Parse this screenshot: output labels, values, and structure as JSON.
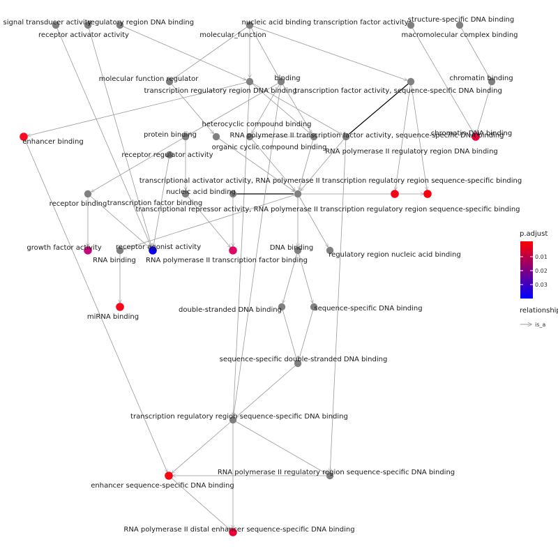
{
  "legend": {
    "color_title": "p.adjust",
    "color_ticks": [
      "0.01",
      "0.02",
      "0.03"
    ],
    "gradient_colors": [
      "#ff0000",
      "#0000ff"
    ],
    "edge_title": "relationship",
    "edge_type": "is_a"
  },
  "colors": {
    "gray_node": "#808080",
    "edge": "#999999",
    "emph_edge": "#000000"
  },
  "nodes": [
    {
      "id": "signal_transducer",
      "label": "signal transducer activity",
      "color": "gray"
    },
    {
      "id": "regulatory_region_dna",
      "label": "regulatory region DNA binding",
      "color": "gray"
    },
    {
      "id": "receptor_activator",
      "label": "receptor activator activity",
      "color": "gray"
    },
    {
      "id": "nucleic_acid_tf",
      "label": "nucleic acid binding transcription factor activity",
      "color": "gray"
    },
    {
      "id": "molecular_function",
      "label": "molecular_function",
      "color": "gray"
    },
    {
      "id": "structure_specific",
      "label": "structure-specific DNA binding",
      "color": "gray"
    },
    {
      "id": "macromolecular_complex",
      "label": "macromolecular complex binding",
      "color": "gray"
    },
    {
      "id": "molecular_function_regulator",
      "label": "molecular function regulator",
      "color": "gray"
    },
    {
      "id": "binding",
      "label": "binding",
      "color": "gray"
    },
    {
      "id": "chromatin",
      "label": "chromatin binding",
      "color": "gray"
    },
    {
      "id": "transcription_regulatory_region",
      "label": "transcription regulatory region DNA binding",
      "color": "gray"
    },
    {
      "id": "tf_activity_seq",
      "label": "transcription factor activity, sequence-specific DNA binding",
      "color": "gray"
    },
    {
      "id": "heterocyclic",
      "label": "heterocyclic compound binding",
      "color": "gray"
    },
    {
      "id": "enhancer",
      "label": "enhancer binding",
      "color": "#fb0a22"
    },
    {
      "id": "protein",
      "label": "protein binding",
      "color": "gray"
    },
    {
      "id": "rna_pol2_tf_seq",
      "label": "RNA polymerase II transcription factor activity, sequence-specific DNA binding",
      "color": "gray"
    },
    {
      "id": "chromatin_dna",
      "label": "chromatin DNA binding",
      "color": "#ea0438"
    },
    {
      "id": "organic_cyclic",
      "label": "organic cyclic compound binding",
      "color": "gray"
    },
    {
      "id": "rna_pol2_regulatory",
      "label": "RNA polymerase II regulatory region DNA binding",
      "color": "gray"
    },
    {
      "id": "receptor_regulator",
      "label": "receptor regulator activity",
      "color": "gray"
    },
    {
      "id": "transcriptional_activator",
      "label": "transcriptional activator activity, RNA polymerase II transcription regulatory region sequence-specific binding",
      "color": "#f3021c"
    },
    {
      "id": "transcriptional_repressor",
      "label": "transcriptional repressor activity, RNA polymerase II transcription regulatory region sequence-specific binding",
      "color": "#fb0010"
    },
    {
      "id": "nucleic_acid",
      "label": "nucleic acid binding",
      "color": "gray"
    },
    {
      "id": "receptor",
      "label": "receptor binding",
      "color": "gray"
    },
    {
      "id": "transcription_factor",
      "label": "transcription factor binding",
      "color": "gray"
    },
    {
      "id": "tf_hub",
      "label": "",
      "color": "gray"
    },
    {
      "id": "growth_factor",
      "label": "growth factor activity",
      "color": "#c8087a"
    },
    {
      "id": "receptor_agonist",
      "label": "receptor agonist activity",
      "color": "#0a00f4"
    },
    {
      "id": "rna",
      "label": "RNA binding",
      "color": "gray"
    },
    {
      "id": "rna_pol2_tf_binding",
      "label": "RNA polymerase II transcription factor binding",
      "color": "#dc0866"
    },
    {
      "id": "dna",
      "label": "DNA binding",
      "color": "gray"
    },
    {
      "id": "regulatory_region_nucleic",
      "label": "regulatory region nucleic acid binding",
      "color": "gray"
    },
    {
      "id": "mirna",
      "label": "miRNA binding",
      "color": "#f8061c"
    },
    {
      "id": "double_stranded",
      "label": "double-stranded DNA binding",
      "color": "gray"
    },
    {
      "id": "sequence_specific",
      "label": "sequence-specific DNA binding",
      "color": "gray"
    },
    {
      "id": "seq_ds",
      "label": "sequence-specific double-stranded DNA binding",
      "color": "gray"
    },
    {
      "id": "trr_seq",
      "label": "transcription regulatory region sequence-specific DNA binding",
      "color": "gray"
    },
    {
      "id": "rna_pol2_rr_seq",
      "label": "RNA polymerase II regulatory region sequence-specific DNA binding",
      "color": "gray"
    },
    {
      "id": "enhancer_seq",
      "label": "enhancer sequence-specific DNA binding",
      "color": "#fb0412"
    },
    {
      "id": "rna_pol2_distal",
      "label": "RNA polymerase II distal enhancer sequence-specific DNA binding",
      "color": "#ed0036"
    }
  ],
  "edges": [
    {
      "from": "nucleic_acid_tf",
      "to": "tf_activity_seq",
      "type": "is_a"
    },
    {
      "from": "molecular_function",
      "to": "molecular_function_regulator",
      "type": "is_a"
    },
    {
      "from": "molecular_function",
      "to": "binding",
      "type": "is_a"
    },
    {
      "from": "regulatory_region_dna",
      "to": "transcription_regulatory_region",
      "type": "is_a"
    },
    {
      "from": "signal_transducer",
      "to": "receptor_agonist",
      "type": "is_a"
    },
    {
      "from": "receptor_activator",
      "to": "receptor_agonist",
      "type": "is_a"
    },
    {
      "from": "molecular_function_regulator",
      "to": "organic_cyclic",
      "type": "is_a"
    },
    {
      "from": "binding",
      "to": "heterocyclic",
      "type": "is_a"
    },
    {
      "from": "binding",
      "to": "rna_pol2_tf_seq",
      "type": "is_a"
    },
    {
      "from": "binding",
      "to": "protein",
      "type": "is_a"
    },
    {
      "from": "structure_specific",
      "to": "chromatin_dna",
      "type": "is_a"
    },
    {
      "from": "macromolecular_complex",
      "to": "chromatin",
      "type": "is_a"
    },
    {
      "from": "chromatin",
      "to": "chromatin_dna",
      "type": "is_a"
    },
    {
      "from": "transcription_regulatory_region",
      "to": "enhancer",
      "type": "is_a"
    },
    {
      "from": "transcription_regulatory_region",
      "to": "rna_pol2_regulatory",
      "type": "is_a"
    },
    {
      "from": "transcription_regulatory_region",
      "to": "trr_seq",
      "type": "is_a"
    },
    {
      "from": "tf_activity_seq",
      "to": "transcriptional_activator",
      "type": "is_a"
    },
    {
      "from": "tf_activity_seq",
      "to": "transcriptional_repressor",
      "type": "is_a"
    },
    {
      "from": "heterocyclic",
      "to": "rna_pol2_tf_seq",
      "type": "is_a"
    },
    {
      "from": "heterocyclic",
      "to": "tf_hub",
      "type": "is_a"
    },
    {
      "from": "organic_cyclic",
      "to": "tf_hub",
      "type": "is_a"
    },
    {
      "from": "protein",
      "to": "receptor",
      "type": "is_a"
    },
    {
      "from": "protein",
      "to": "transcription_factor",
      "type": "is_a"
    },
    {
      "from": "rna_pol2_tf_seq",
      "to": "tf_hub",
      "type": "is_a"
    },
    {
      "from": "rna_pol2_regulatory",
      "to": "tf_hub",
      "type": "is_a"
    },
    {
      "from": "rna_pol2_regulatory",
      "to": "rna_pol2_rr_seq",
      "type": "is_a"
    },
    {
      "from": "receptor_regulator",
      "to": "receptor_agonist",
      "type": "is_a"
    },
    {
      "from": "nucleic_acid",
      "to": "tf_hub",
      "type": "emph"
    },
    {
      "from": "nucleic_acid",
      "to": "rna_pol2_tf_binding",
      "type": "is_a"
    },
    {
      "from": "tf_hub",
      "to": "dna",
      "type": "is_a"
    },
    {
      "from": "tf_hub",
      "to": "regulatory_region_nucleic",
      "type": "is_a"
    },
    {
      "from": "tf_hub",
      "to": "rna",
      "type": "is_a"
    },
    {
      "from": "transcription_factor",
      "to": "rna_pol2_tf_binding",
      "type": "is_a"
    },
    {
      "from": "receptor",
      "to": "growth_factor",
      "type": "is_a"
    },
    {
      "from": "receptor",
      "to": "receptor_agonist",
      "type": "is_a"
    },
    {
      "from": "rna",
      "to": "mirna",
      "type": "is_a"
    },
    {
      "from": "dna",
      "to": "double_stranded",
      "type": "is_a"
    },
    {
      "from": "dna",
      "to": "sequence_specific",
      "type": "is_a"
    },
    {
      "from": "double_stranded",
      "to": "seq_ds",
      "type": "is_a"
    },
    {
      "from": "sequence_specific",
      "to": "seq_ds",
      "type": "is_a"
    },
    {
      "from": "seq_ds",
      "to": "trr_seq",
      "type": "is_a"
    },
    {
      "from": "trr_seq",
      "to": "enhancer_seq",
      "type": "is_a"
    },
    {
      "from": "trr_seq",
      "to": "rna_pol2_rr_seq",
      "type": "is_a"
    },
    {
      "from": "trr_seq",
      "to": "rna_pol2_distal",
      "type": "is_a"
    },
    {
      "from": "enhancer",
      "to": "enhancer_seq",
      "type": "is_a"
    },
    {
      "from": "rna_pol2_rr_seq",
      "to": "enhancer_seq",
      "type": "is_a"
    },
    {
      "from": "enhancer_seq",
      "to": "rna_pol2_distal",
      "type": "is_a"
    },
    {
      "from": "binding",
      "to": "trr_seq",
      "type": "is_a"
    },
    {
      "from": "nucleic_acid_tf",
      "to": "transcription_regulatory_region",
      "type": "is_a"
    },
    {
      "from": "transcription_regulatory_region",
      "to": "rna_pol2_tf_seq",
      "type": "is_a"
    },
    {
      "from": "tf_hub",
      "to": "transcriptional_repressor",
      "type": "is_a"
    },
    {
      "from": "tf_activity_seq",
      "to": "rna_pol2_regulatory",
      "type": "emph"
    }
  ]
}
